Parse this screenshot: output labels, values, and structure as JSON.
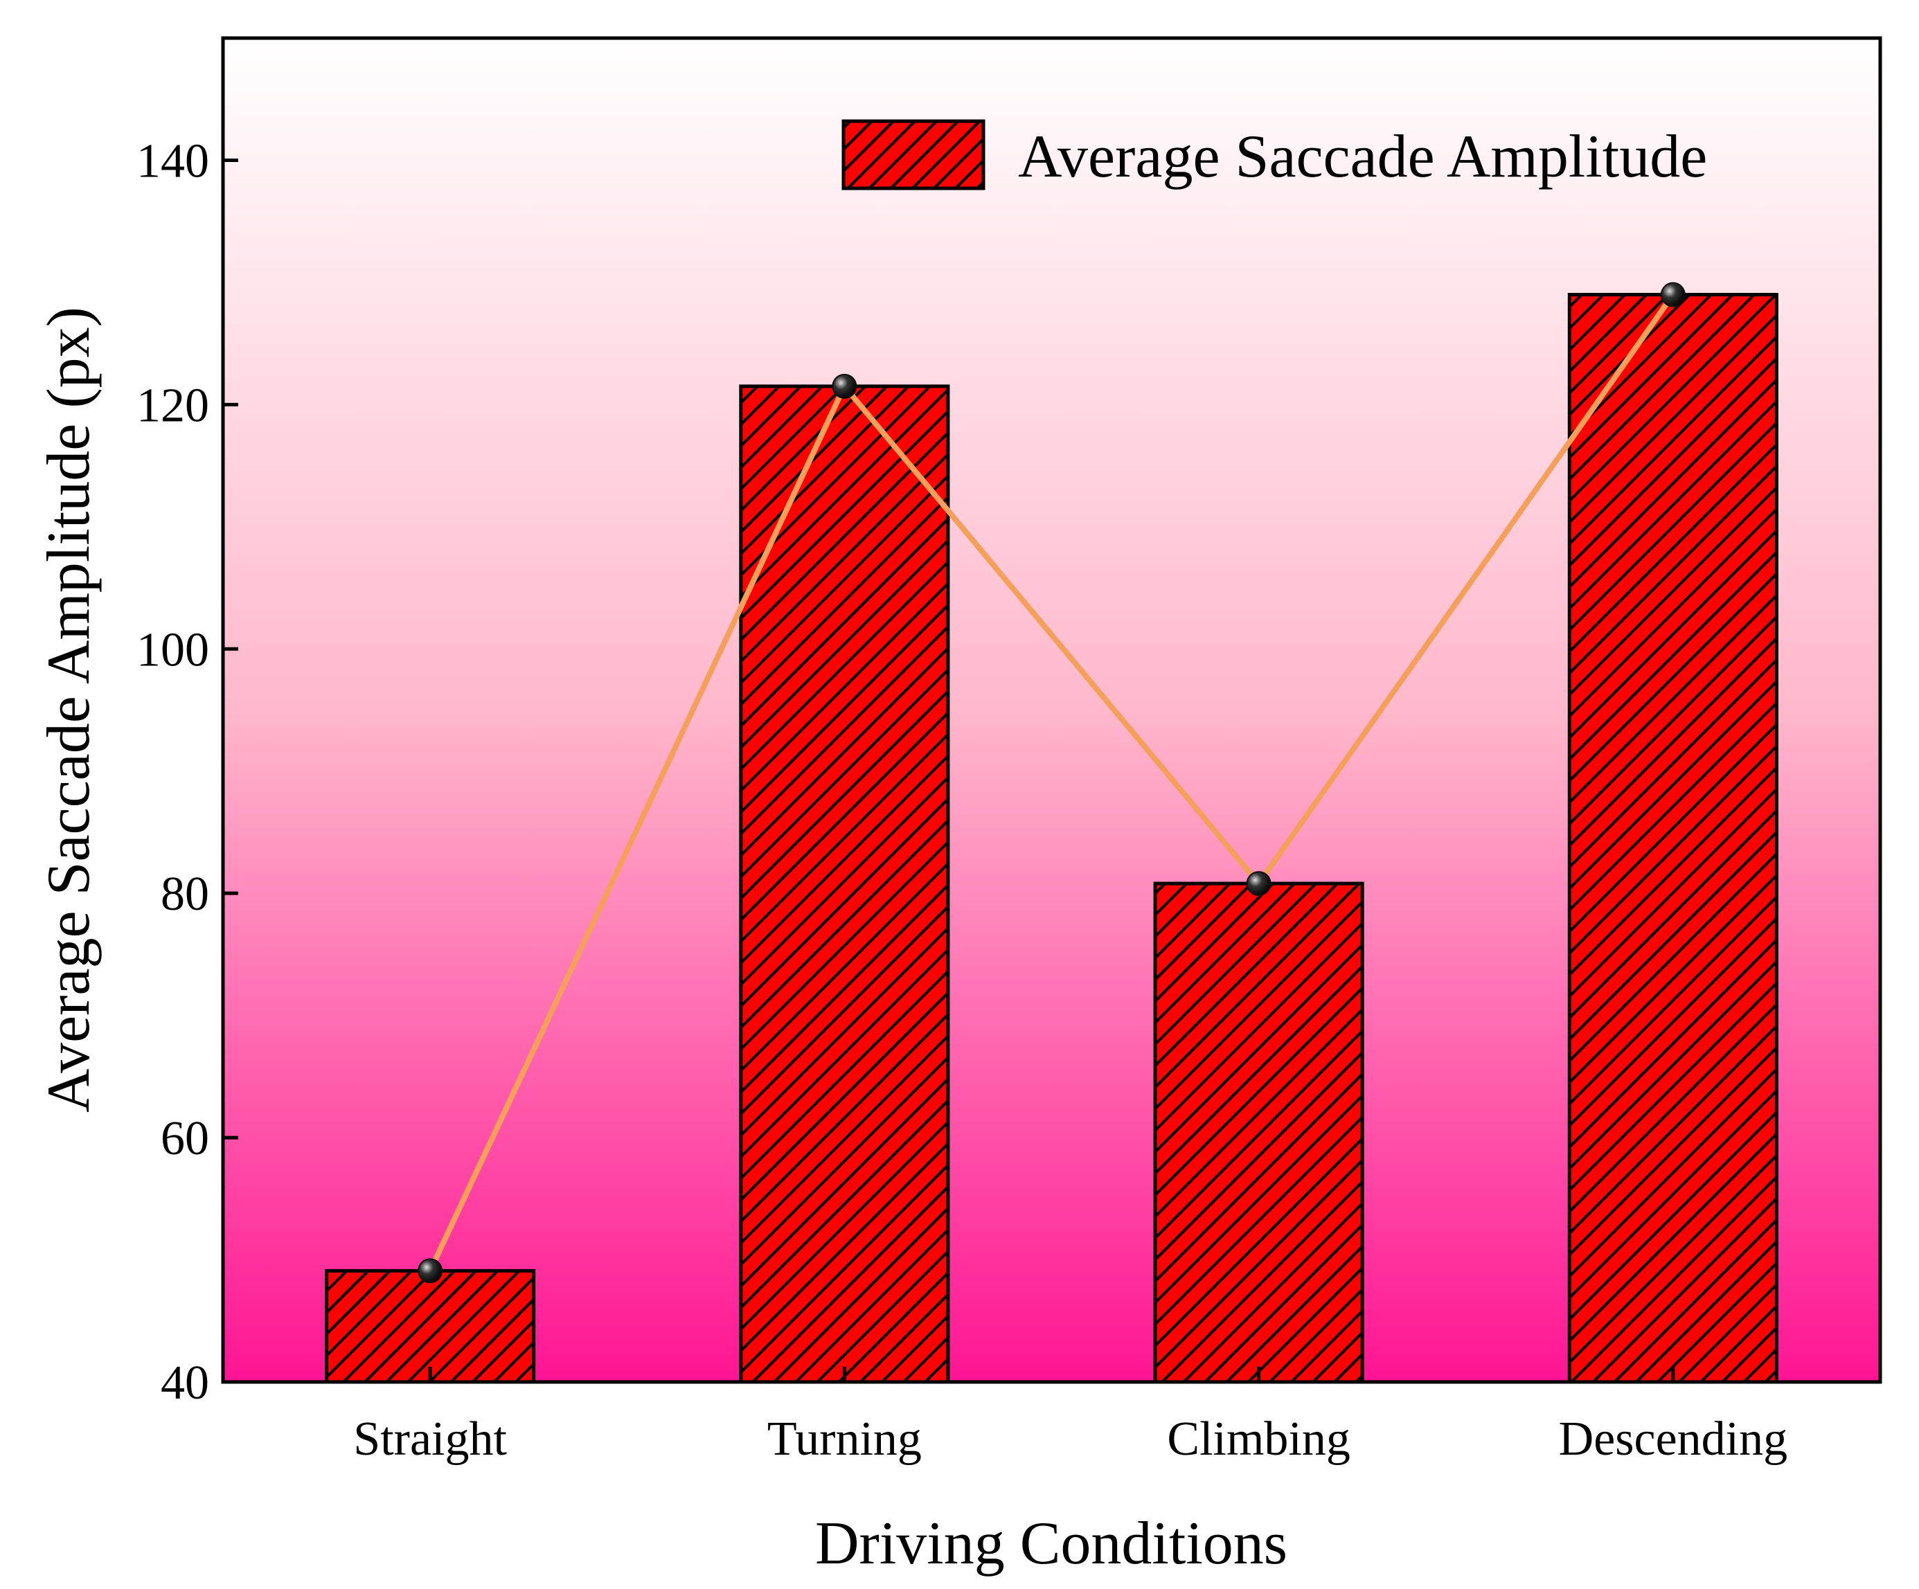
{
  "chart_data": {
    "type": "bar",
    "title": "",
    "xlabel": "Driving Conditions",
    "ylabel": "Average Saccade Amplitude (px)",
    "categories": [
      "Straight",
      "Turning",
      "Climbing",
      "Descending"
    ],
    "series": [
      {
        "name": "Average Saccade Amplitude",
        "values": [
          49.1,
          121.5,
          80.8,
          129.0
        ],
        "overlay_line": true
      }
    ],
    "ylim": [
      40,
      150
    ],
    "yticks": [
      40,
      60,
      80,
      100,
      120,
      140
    ],
    "ytick_labels": [
      "40",
      "60",
      "80",
      "100",
      "120",
      "140"
    ],
    "grid": false,
    "legend": "top-right",
    "colors": {
      "bar_fill": "#ff0000",
      "bar_hatch": "#000000",
      "line": "#f5a05a",
      "marker": "#111111",
      "background_top": "#ffffff",
      "background_bottom": "#ff1493"
    }
  }
}
